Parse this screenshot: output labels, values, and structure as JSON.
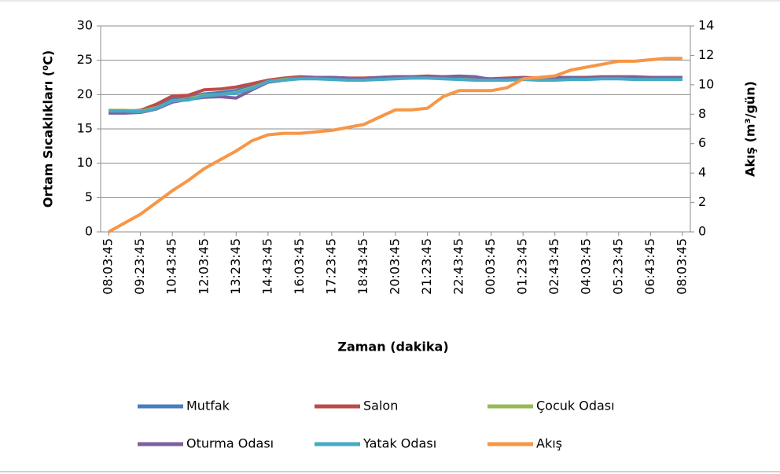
{
  "chart_data": {
    "type": "line",
    "x_label": "Zaman  (dakika)",
    "y_label": "Ortam Sıcaklıkları  (⁰C)",
    "y2_label": "Akış (m³/gün)",
    "categories": [
      "08:03:45",
      null,
      "09:23:45",
      null,
      "10:43:45",
      null,
      "12:03:45",
      null,
      "13:23:45",
      null,
      "14:43:45",
      null,
      "16:03:45",
      null,
      "17:23:45",
      null,
      "18:43:45",
      null,
      "20:03:45",
      null,
      "21:23:45",
      null,
      "22:43:45",
      null,
      "00:03:45",
      null,
      "01:23:45",
      null,
      "02:43:45",
      null,
      "04:03:45",
      null,
      "05:23:45",
      null,
      "06:43:45",
      null,
      "08:03:45"
    ],
    "ylim": [
      0,
      30
    ],
    "yticks": [
      0,
      5,
      10,
      15,
      20,
      25,
      30
    ],
    "y2lim": [
      0,
      14
    ],
    "y2ticks": [
      0,
      2,
      4,
      6,
      8,
      10,
      12,
      14
    ],
    "grid": true,
    "series": [
      {
        "name": "Mutfak",
        "color": "#4a7ebb",
        "values": [
          17.6,
          17.6,
          17.7,
          18.3,
          19.4,
          19.6,
          20.1,
          20.3,
          20.6,
          21.3,
          22.0,
          22.3,
          22.5,
          22.5,
          22.4,
          22.3,
          22.3,
          22.4,
          22.5,
          22.5,
          22.6,
          22.5,
          22.4,
          22.3,
          22.2,
          22.3,
          22.4,
          22.3,
          22.3,
          22.4,
          22.4,
          22.5,
          22.5,
          22.5,
          22.4,
          22.4,
          22.4
        ]
      },
      {
        "name": "Salon",
        "color": "#be4b48",
        "values": [
          17.4,
          17.5,
          17.7,
          18.6,
          19.8,
          19.9,
          20.7,
          20.8,
          21.1,
          21.6,
          22.1,
          22.4,
          22.6,
          22.5,
          22.5,
          22.4,
          22.4,
          22.5,
          22.6,
          22.6,
          22.7,
          22.6,
          22.6,
          22.4,
          22.3,
          22.4,
          22.5,
          22.4,
          22.4,
          22.5,
          22.5,
          22.6,
          22.6,
          22.6,
          22.5,
          22.5,
          22.5
        ]
      },
      {
        "name": "Çocuk Odası",
        "color": "#98b954",
        "values": [
          17.7,
          17.7,
          17.6,
          18.1,
          19.0,
          19.4,
          19.9,
          20.0,
          20.3,
          21.0,
          21.9,
          22.2,
          22.4,
          22.4,
          22.3,
          22.2,
          22.2,
          22.3,
          22.4,
          22.5,
          22.5,
          22.4,
          22.3,
          22.2,
          22.1,
          22.2,
          22.3,
          22.2,
          22.2,
          22.3,
          22.3,
          22.4,
          22.4,
          22.3,
          22.3,
          22.3,
          22.3
        ]
      },
      {
        "name": "Oturma Odası",
        "color": "#7d60a0",
        "values": [
          17.3,
          17.3,
          17.4,
          17.9,
          18.9,
          19.3,
          19.6,
          19.7,
          19.5,
          20.7,
          21.8,
          22.1,
          22.4,
          22.5,
          22.5,
          22.4,
          22.3,
          22.5,
          22.6,
          22.6,
          22.5,
          22.6,
          22.7,
          22.6,
          22.2,
          22.3,
          22.4,
          22.4,
          22.5,
          22.5,
          22.4,
          22.5,
          22.6,
          22.5,
          22.4,
          22.5,
          22.5
        ]
      },
      {
        "name": "Yatak Odası",
        "color": "#46aac5",
        "values": [
          17.6,
          17.6,
          17.5,
          18.0,
          19.1,
          19.2,
          19.8,
          20.0,
          20.2,
          20.9,
          21.9,
          22.1,
          22.3,
          22.3,
          22.2,
          22.1,
          22.1,
          22.2,
          22.3,
          22.4,
          22.4,
          22.3,
          22.2,
          22.1,
          22.1,
          22.1,
          22.2,
          22.1,
          22.1,
          22.2,
          22.2,
          22.3,
          22.3,
          22.2,
          22.2,
          22.2,
          22.2
        ]
      },
      {
        "name": "Akış",
        "color": "#f79646",
        "axis": "y2",
        "values": [
          0,
          0.6,
          1.2,
          2.0,
          2.8,
          3.5,
          4.3,
          4.9,
          5.5,
          6.2,
          6.6,
          6.7,
          6.7,
          6.8,
          6.9,
          7.1,
          7.3,
          7.8,
          8.3,
          8.3,
          8.4,
          9.2,
          9.6,
          9.6,
          9.6,
          9.8,
          10.4,
          10.5,
          10.6,
          11.0,
          11.2,
          11.4,
          11.6,
          11.6,
          11.7,
          11.8,
          11.8
        ]
      }
    ]
  }
}
